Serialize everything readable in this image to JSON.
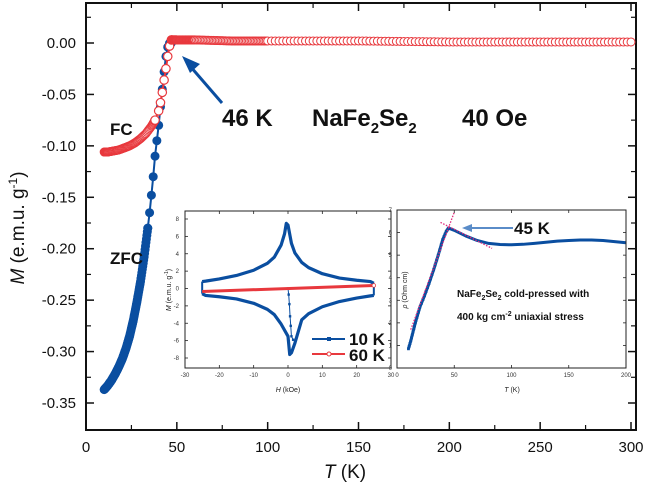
{
  "chart_data": [
    {
      "id": "main",
      "type": "scatter",
      "title": "",
      "xlabel": "T (K)",
      "xlabel_italic": "T",
      "xlabel_unit": " (K)",
      "ylabel_italic": "M",
      "ylabel_unit": " (e.m.u. g",
      "ylabel_sup": "-1",
      "ylabel_close": ")",
      "xlim": [
        0,
        305
      ],
      "ylim": [
        -0.375,
        0.035
      ],
      "xticks": [
        0,
        50,
        100,
        150,
        200,
        250,
        300
      ],
      "xtick_labels": [
        "0",
        "50",
        "100",
        "150",
        "200",
        "250",
        "300"
      ],
      "yticks": [
        0.0,
        -0.05,
        -0.1,
        -0.15,
        -0.2,
        -0.25,
        -0.3,
        -0.35
      ],
      "ytick_labels": [
        "0.00",
        "-0.05",
        "-0.10",
        "-0.15",
        "-0.20",
        "-0.25",
        "-0.30",
        "-0.35"
      ],
      "grid": false,
      "series": [
        {
          "name": "ZFC",
          "color": "#0a4ea0",
          "marker": "filled-circle",
          "x": [
            10,
            12,
            14,
            16,
            18,
            20,
            22,
            24,
            26,
            28,
            30,
            32,
            34,
            35,
            36,
            37,
            38,
            39,
            40,
            41,
            42,
            43,
            44,
            45,
            46,
            47,
            50,
            60,
            80,
            100,
            150,
            200,
            250,
            300
          ],
          "y": [
            -0.337,
            -0.333,
            -0.328,
            -0.322,
            -0.315,
            -0.307,
            -0.297,
            -0.285,
            -0.27,
            -0.252,
            -0.232,
            -0.208,
            -0.18,
            -0.165,
            -0.148,
            -0.13,
            -0.11,
            -0.095,
            -0.08,
            -0.062,
            -0.045,
            -0.028,
            -0.013,
            -0.004,
            0.0,
            0.0,
            0.0,
            0.0,
            0.0,
            0.0,
            0.0,
            0.0,
            0.0,
            0.0
          ]
        },
        {
          "name": "FC",
          "color": "#e8383d",
          "marker": "open-circle",
          "x": [
            10,
            12,
            15,
            18,
            21,
            24,
            27,
            30,
            33,
            36,
            38,
            40,
            41,
            42,
            43,
            44,
            45,
            46,
            47,
            50,
            60,
            80,
            100,
            150,
            200,
            250,
            300
          ],
          "y": [
            -0.106,
            -0.106,
            -0.105,
            -0.104,
            -0.102,
            -0.1,
            -0.097,
            -0.093,
            -0.088,
            -0.081,
            -0.075,
            -0.066,
            -0.058,
            -0.048,
            -0.036,
            -0.025,
            -0.013,
            -0.003,
            0.003,
            0.003,
            0.003,
            0.002,
            0.002,
            0.002,
            0.001,
            0.001,
            0.001
          ]
        }
      ],
      "annotations": {
        "fc_label": "FC",
        "zfc_label": "ZFC",
        "tc_label": "46 K",
        "compound_base": "NaFe",
        "compound_sub1": "2",
        "compound_mid": "Se",
        "compound_sub2": "2",
        "field_label": "40 Oe",
        "arrow_color": "#0a4ea0"
      }
    },
    {
      "id": "inset-hysteresis",
      "type": "line",
      "xlabel_italic": "H",
      "xlabel_unit": " (kOe)",
      "ylabel_italic": "M",
      "ylabel_unit": " (e.m.u. g",
      "ylabel_sup": "-1",
      "ylabel_close": ")",
      "xlim": [
        -30,
        30
      ],
      "ylim": [
        -9,
        9
      ],
      "xticks": [
        -30,
        -20,
        -10,
        0,
        10,
        20,
        30
      ],
      "xtick_labels": [
        "-30",
        "-20",
        "-10",
        "0",
        "10",
        "20",
        "30"
      ],
      "yticks": [
        8,
        6,
        4,
        2,
        0,
        -2,
        -4,
        -6,
        -8
      ],
      "ytick_labels": [
        "8",
        "6",
        "4",
        "2",
        "0",
        "-2",
        "-4",
        "-6",
        "-8"
      ],
      "legend_position": "bottom-right",
      "series": [
        {
          "name": "10 K",
          "color": "#0a4ea0",
          "upper_branch_x": [
            -25,
            -24,
            -20,
            -15,
            -10,
            -6,
            -4,
            -2,
            -1,
            -0.5,
            0,
            1,
            2,
            4,
            6,
            10,
            15,
            20,
            24,
            25
          ],
          "upper_branch_y": [
            0.8,
            0.85,
            1.1,
            1.5,
            2.1,
            2.9,
            3.6,
            5.0,
            6.3,
            7.5,
            7.3,
            5.2,
            4.1,
            3.0,
            2.4,
            1.7,
            1.2,
            0.95,
            0.8,
            0.6
          ],
          "lower_branch_x": [
            -25,
            -24,
            -20,
            -15,
            -10,
            -6,
            -4,
            -2,
            0,
            0.5,
            1,
            2,
            4,
            6,
            10,
            15,
            20,
            24,
            25
          ],
          "lower_branch_y": [
            -0.6,
            -0.8,
            -0.95,
            -1.2,
            -1.7,
            -2.4,
            -3.0,
            -4.1,
            -5.5,
            -7.6,
            -7.4,
            -6.3,
            -3.6,
            -2.9,
            -2.1,
            -1.5,
            -1.1,
            -0.85,
            -0.8
          ],
          "virgin_x": [
            0,
            0.2,
            0.4,
            0.6,
            0.8,
            1.0,
            1.5
          ],
          "virgin_y": [
            0,
            -0.7,
            -1.8,
            -3.2,
            -4.3,
            -5.5,
            -5.9
          ]
        },
        {
          "name": "60 K",
          "color": "#e8383d",
          "x": [
            -25,
            25
          ],
          "y": [
            -0.35,
            0.35
          ]
        }
      ]
    },
    {
      "id": "inset-resistivity",
      "type": "line",
      "xlabel_italic": "T",
      "xlabel_unit": " (K)",
      "ylabel_italic": "ρ",
      "ylabel_unit": " (Ohm cm)",
      "xlim": [
        0,
        200
      ],
      "ylim": [
        0,
        7
      ],
      "xticks": [
        0,
        50,
        100,
        150,
        200
      ],
      "xtick_labels": [
        "0",
        "50",
        "100",
        "150",
        "200"
      ],
      "yticks": [
        0,
        1,
        2,
        3,
        4,
        5,
        6,
        7
      ],
      "ytick_labels": [
        "0",
        "1",
        "2",
        "3",
        "4",
        "5",
        "6",
        "7"
      ],
      "series": [
        {
          "name": "rho",
          "color": "#0a4ea0",
          "x": [
            10,
            12,
            14,
            16,
            18,
            20,
            24,
            28,
            32,
            36,
            40,
            43,
            45,
            50,
            60,
            70,
            80,
            90,
            100,
            110,
            120,
            130,
            140,
            150,
            160,
            170,
            180,
            190,
            200
          ],
          "y": [
            0.85,
            1.2,
            1.6,
            2.0,
            2.35,
            2.7,
            3.2,
            3.75,
            4.35,
            5.0,
            5.7,
            6.05,
            6.2,
            6.1,
            5.85,
            5.65,
            5.52,
            5.47,
            5.46,
            5.48,
            5.52,
            5.57,
            5.62,
            5.65,
            5.67,
            5.67,
            5.65,
            5.6,
            5.55
          ]
        }
      ],
      "fit_lines": [
        {
          "name": "low-T fit",
          "color": "#e0287a",
          "x": [
            12,
            50
          ],
          "y": [
            1.7,
            6.9
          ]
        },
        {
          "name": "high-T fit",
          "color": "#e0287a",
          "x": [
            38,
            83
          ],
          "y": [
            6.45,
            5.3
          ]
        }
      ],
      "annotations": {
        "tc_label": "45 K",
        "note_line1_a": "NaFe",
        "note_line1_sub1": "2",
        "note_line1_b": "Se",
        "note_line1_sub2": "2",
        "note_line1_c": " cold-pressed with",
        "note_line2_a": "400 kg cm",
        "note_line2_sup": "-2",
        "note_line2_b": " uniaxial stress",
        "arrow_color": "#5a8cc8"
      }
    }
  ]
}
